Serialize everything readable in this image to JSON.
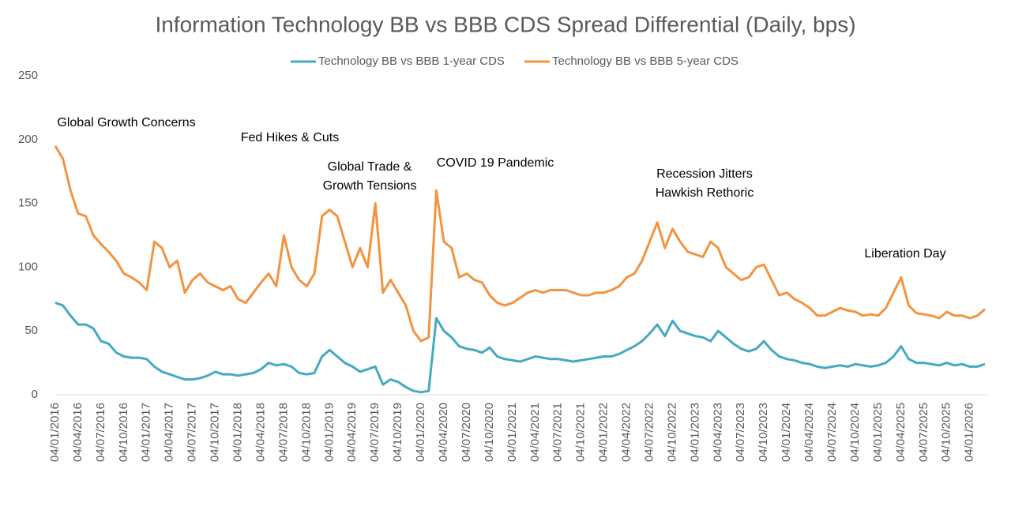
{
  "chart_data": {
    "type": "line",
    "title": "Information Technology BB vs BBB CDS Spread Differential (Daily, bps)",
    "x": [
      "04/01/2016",
      "04/02/2016",
      "04/03/2016",
      "04/04/2016",
      "04/05/2016",
      "04/06/2016",
      "04/07/2016",
      "04/08/2016",
      "04/09/2016",
      "04/10/2016",
      "04/11/2016",
      "04/12/2016",
      "04/01/2017",
      "04/02/2017",
      "04/03/2017",
      "04/04/2017",
      "04/05/2017",
      "04/06/2017",
      "04/07/2017",
      "04/08/2017",
      "04/09/2017",
      "04/10/2017",
      "04/11/2017",
      "04/12/2017",
      "04/01/2018",
      "04/02/2018",
      "04/03/2018",
      "04/04/2018",
      "04/05/2018",
      "04/06/2018",
      "04/07/2018",
      "04/08/2018",
      "04/09/2018",
      "04/10/2018",
      "04/11/2018",
      "04/12/2018",
      "04/01/2019",
      "04/02/2019",
      "04/03/2019",
      "04/04/2019",
      "04/05/2019",
      "04/06/2019",
      "04/07/2019",
      "04/08/2019",
      "04/09/2019",
      "04/10/2019",
      "04/11/2019",
      "04/12/2019",
      "04/01/2020",
      "04/02/2020",
      "04/03/2020",
      "04/04/2020",
      "04/05/2020",
      "04/06/2020",
      "04/07/2020",
      "04/08/2020",
      "04/09/2020",
      "04/10/2020",
      "04/11/2020",
      "04/12/2020",
      "04/01/2021",
      "04/02/2021",
      "04/03/2021",
      "04/04/2021",
      "04/05/2021",
      "04/06/2021",
      "04/07/2021",
      "04/08/2021",
      "04/09/2021",
      "04/10/2021",
      "04/11/2021",
      "04/12/2021",
      "04/01/2022",
      "04/02/2022",
      "04/03/2022",
      "04/04/2022",
      "04/05/2022",
      "04/06/2022",
      "04/07/2022",
      "04/08/2022",
      "04/09/2022",
      "04/10/2022",
      "04/11/2022",
      "04/12/2022",
      "04/01/2023",
      "04/02/2023",
      "04/03/2023",
      "04/04/2023",
      "04/05/2023",
      "04/06/2023",
      "04/07/2023",
      "04/08/2023",
      "04/09/2023",
      "04/10/2023",
      "04/11/2023",
      "04/12/2023",
      "04/01/2024",
      "04/02/2024",
      "04/03/2024",
      "04/04/2024",
      "04/05/2024",
      "04/06/2024",
      "04/07/2024",
      "04/08/2024",
      "04/09/2024",
      "04/10/2024",
      "04/11/2024",
      "04/12/2024",
      "04/01/2025",
      "04/02/2025",
      "04/03/2025",
      "04/04/2025",
      "04/05/2025",
      "04/06/2025",
      "04/07/2025",
      "04/08/2025",
      "04/09/2025",
      "04/10/2025",
      "04/11/2025",
      "04/12/2025",
      "04/01/2026",
      "04/02/2026",
      "04/03/2026"
    ],
    "series": [
      {
        "name": "Technology BB vs BBB 1-year CDS",
        "color": "#45a9c2",
        "values": [
          72,
          70,
          62,
          55,
          55,
          52,
          42,
          40,
          33,
          30,
          29,
          29,
          28,
          22,
          18,
          16,
          14,
          12,
          12,
          13,
          15,
          18,
          16,
          16,
          15,
          16,
          17,
          20,
          25,
          23,
          24,
          22,
          17,
          16,
          17,
          30,
          35,
          30,
          25,
          22,
          18,
          20,
          22,
          8,
          12,
          10,
          6,
          3,
          2,
          3,
          60,
          50,
          45,
          38,
          36,
          35,
          33,
          37,
          30,
          28,
          27,
          26,
          28,
          30,
          29,
          28,
          28,
          27,
          26,
          27,
          28,
          29,
          30,
          30,
          32,
          35,
          38,
          42,
          48,
          55,
          46,
          58,
          50,
          48,
          46,
          45,
          42,
          50,
          45,
          40,
          36,
          34,
          36,
          42,
          35,
          30,
          28,
          27,
          25,
          24,
          22,
          21,
          22,
          23,
          22,
          24,
          23,
          22,
          23,
          25,
          30,
          38,
          28,
          25,
          25,
          24,
          23,
          25,
          23,
          24,
          22,
          22,
          24
        ]
      },
      {
        "name": "Technology BB vs BBB 5-year CDS",
        "color": "#f4933f",
        "values": [
          195,
          185,
          160,
          142,
          140,
          125,
          118,
          112,
          105,
          95,
          92,
          88,
          82,
          120,
          115,
          100,
          105,
          80,
          90,
          95,
          88,
          85,
          82,
          85,
          75,
          72,
          80,
          88,
          95,
          85,
          125,
          100,
          90,
          85,
          95,
          140,
          145,
          140,
          120,
          100,
          115,
          100,
          150,
          80,
          90,
          80,
          70,
          50,
          42,
          45,
          160,
          120,
          115,
          92,
          95,
          90,
          88,
          78,
          72,
          70,
          72,
          76,
          80,
          82,
          80,
          82,
          82,
          82,
          80,
          78,
          78,
          80,
          80,
          82,
          85,
          92,
          95,
          105,
          120,
          135,
          115,
          130,
          120,
          112,
          110,
          108,
          120,
          115,
          100,
          95,
          90,
          92,
          100,
          102,
          90,
          78,
          80,
          75,
          72,
          68,
          62,
          62,
          65,
          68,
          66,
          65,
          62,
          63,
          62,
          68,
          80,
          92,
          70,
          64,
          63,
          62,
          60,
          65,
          62,
          62,
          60,
          62,
          67
        ]
      }
    ],
    "xlim": [
      "04/01/2016",
      "04/03/2026"
    ],
    "xticks": [
      "04/01/2016",
      "04/04/2016",
      "04/07/2016",
      "04/10/2016",
      "04/01/2017",
      "04/04/2017",
      "04/07/2017",
      "04/10/2017",
      "04/01/2018",
      "04/04/2018",
      "04/07/2018",
      "04/10/2018",
      "04/01/2019",
      "04/04/2019",
      "04/07/2019",
      "04/10/2019",
      "04/01/2020",
      "04/04/2020",
      "04/07/2020",
      "04/10/2020",
      "04/01/2021",
      "04/04/2021",
      "04/07/2021",
      "04/10/2021",
      "04/01/2022",
      "04/04/2022",
      "04/07/2022",
      "04/10/2022",
      "04/01/2023",
      "04/04/2023",
      "04/07/2023",
      "04/10/2023",
      "04/01/2024",
      "04/04/2024",
      "04/07/2024",
      "04/10/2024",
      "04/01/2025",
      "04/04/2025",
      "04/07/2025",
      "04/10/2025",
      "04/01/2026"
    ],
    "ylim": [
      0,
      250
    ],
    "yticks": [
      0,
      50,
      100,
      150,
      200,
      250
    ],
    "annotations": [
      "Global Growth Concerns",
      "Fed Hikes & Cuts",
      "Global Trade &",
      "Growth Tensions",
      "COVID 19 Pandemic",
      "Recession Jitters",
      "Hawkish Rethoric",
      "Liberation Day"
    ]
  }
}
